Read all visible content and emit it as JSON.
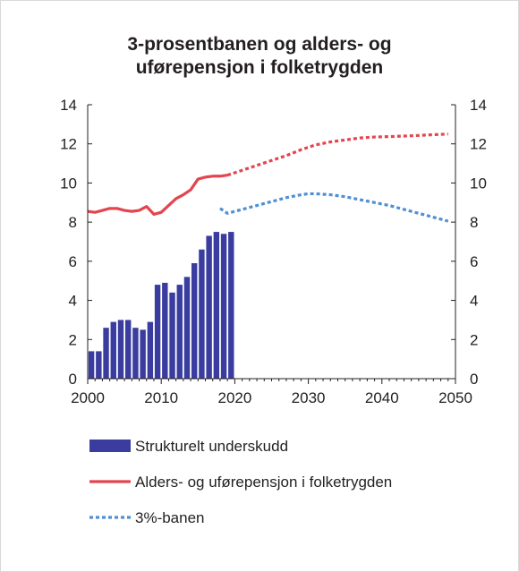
{
  "title_lines": [
    "3-prosentbanen og alders- og",
    "uførepensjon  i folketrygden"
  ],
  "colors": {
    "bars": "#3a3d9f",
    "pension_line": "#e3454f",
    "three_percent": "#4f8fd3",
    "axis": "#231f20",
    "frame": "#d9d9d9"
  },
  "chart_data": {
    "type": "bar+line",
    "title": "3-prosentbanen og alders- og uførepensjon  i folketrygden",
    "x_axis": {
      "min": 2000,
      "max": 2050,
      "ticks": [
        2000,
        2010,
        2020,
        2030,
        2040,
        2050
      ],
      "tick_labels": [
        "2000",
        "2010",
        "2020",
        "2030",
        "2040",
        "2050"
      ]
    },
    "y_axis_left": {
      "min": 0,
      "max": 14,
      "ticks": [
        0,
        2,
        4,
        6,
        8,
        10,
        12,
        14
      ],
      "tick_labels": [
        "0",
        "2",
        "4",
        "6",
        "8",
        "10",
        "12",
        "14"
      ]
    },
    "y_axis_right": {
      "min": 0,
      "max": 14,
      "ticks": [
        0,
        2,
        4,
        6,
        8,
        10,
        12,
        14
      ],
      "tick_labels": [
        "0",
        "2",
        "4",
        "6",
        "8",
        "10",
        "12",
        "14"
      ]
    },
    "grid": false,
    "legend_position": "bottom",
    "series": [
      {
        "name": "Strukturelt underskudd",
        "type": "bar",
        "x": [
          2000,
          2001,
          2002,
          2003,
          2004,
          2005,
          2006,
          2007,
          2008,
          2009,
          2010,
          2011,
          2012,
          2013,
          2014,
          2015,
          2016,
          2017,
          2018,
          2019
        ],
        "values": [
          1.4,
          1.4,
          2.6,
          2.9,
          3.0,
          3.0,
          2.6,
          2.5,
          2.9,
          4.8,
          4.9,
          4.4,
          4.8,
          5.2,
          5.9,
          6.6,
          7.3,
          7.5,
          7.4,
          7.5
        ]
      },
      {
        "name": "Alders- og uførepensjon i  folketrygden",
        "type": "line",
        "style": "solid",
        "x": [
          2000,
          2001,
          2002,
          2003,
          2004,
          2005,
          2006,
          2007,
          2008,
          2009,
          2010,
          2011,
          2012,
          2013,
          2014,
          2015,
          2016,
          2017,
          2018,
          2019
        ],
        "values": [
          8.55,
          8.5,
          8.6,
          8.7,
          8.7,
          8.6,
          8.55,
          8.6,
          8.8,
          8.4,
          8.5,
          8.85,
          9.2,
          9.4,
          9.65,
          10.2,
          10.3,
          10.35,
          10.35,
          10.4
        ]
      },
      {
        "name": "Alders- og uførepensjon i  folketrygden (projection)",
        "type": "line",
        "style": "dashed",
        "x": [
          2019,
          2021,
          2023,
          2025,
          2027,
          2029,
          2031,
          2033,
          2035,
          2037,
          2039,
          2041,
          2043,
          2045,
          2047,
          2049
        ],
        "values": [
          10.4,
          10.65,
          10.9,
          11.15,
          11.4,
          11.7,
          11.95,
          12.1,
          12.2,
          12.3,
          12.35,
          12.37,
          12.4,
          12.43,
          12.47,
          12.5
        ]
      },
      {
        "name": "3%-banen",
        "type": "line",
        "style": "dotted",
        "x": [
          2018,
          2019,
          2021,
          2023,
          2025,
          2027,
          2029,
          2030,
          2031,
          2033,
          2035,
          2037,
          2039,
          2041,
          2043,
          2045,
          2047,
          2049
        ],
        "values": [
          8.7,
          8.45,
          8.65,
          8.85,
          9.05,
          9.25,
          9.4,
          9.45,
          9.45,
          9.4,
          9.3,
          9.15,
          9.0,
          8.85,
          8.65,
          8.45,
          8.25,
          8.05
        ]
      }
    ]
  },
  "legend": [
    {
      "label": "Strukturelt underskudd",
      "kind": "bar"
    },
    {
      "label": "Alders- og uførepensjon i  folketrygden",
      "kind": "solid"
    },
    {
      "label": "3%-banen",
      "kind": "dotted"
    }
  ]
}
